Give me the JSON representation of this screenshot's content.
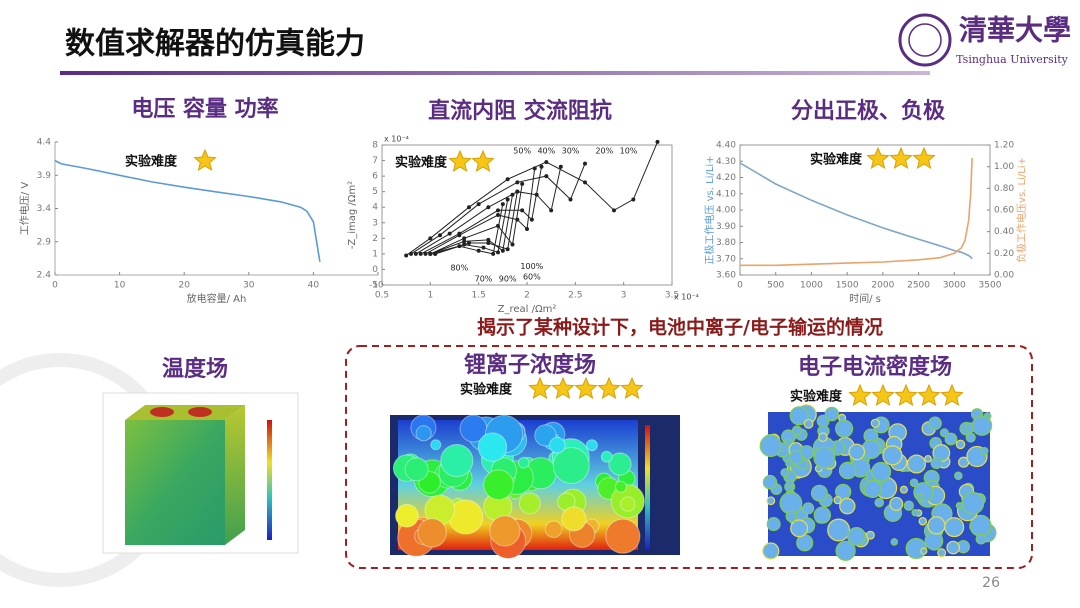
{
  "header": {
    "title": "数值求解器的仿真能力",
    "logo_cn": "清華大學",
    "logo_en": "Tsinghua University"
  },
  "sections": [
    {
      "title": "电压 容量 功率",
      "difficulty_label": "实验难度",
      "stars": 1
    },
    {
      "title": "直流内阻 交流阻抗",
      "difficulty_label": "实验难度",
      "stars": 2
    },
    {
      "title": "分出正极、负极",
      "difficulty_label": "实验难度",
      "stars": 3
    },
    {
      "title": "温度场"
    },
    {
      "title": "锂离子浓度场",
      "difficulty_label": "实验难度",
      "stars": 5
    },
    {
      "title": "电子电流密度场",
      "difficulty_label": "实验难度",
      "stars": 5
    }
  ],
  "banner": "揭示了某种设计下，电池中离子/电子输运的情况",
  "page_number": "26",
  "chart_data": [
    {
      "type": "line",
      "xlabel": "放电容量/ Ah",
      "ylabel": "工作电压/ V",
      "x": [
        0,
        1,
        5,
        10,
        15,
        20,
        25,
        30,
        35,
        38,
        39,
        40,
        40.5,
        41
      ],
      "series": [
        {
          "color": "#5b9bd5",
          "values": [
            4.12,
            4.07,
            4.0,
            3.9,
            3.8,
            3.72,
            3.65,
            3.58,
            3.5,
            3.42,
            3.36,
            3.2,
            2.9,
            2.6
          ]
        }
      ],
      "xlim": [
        0,
        50
      ],
      "xticks": [
        0,
        10,
        20,
        30,
        40,
        50
      ],
      "ylim": [
        2.4,
        4.4
      ],
      "yticks": [
        2.4,
        2.9,
        3.4,
        3.9,
        4.4
      ]
    },
    {
      "type": "line",
      "markers": true,
      "xlabel": "Z_real /Ωm²",
      "ylabel": "-Z_imag /Ωm²",
      "x_exponent": "x 10⁻⁴",
      "y_exponent": "x 10⁻⁴",
      "series": [
        {
          "name": "10%",
          "color": "#222",
          "x": [
            0.75,
            1.0,
            1.4,
            1.8,
            2.2,
            2.6,
            2.9,
            3.1,
            3.35
          ],
          "values": [
            0.9,
            2.0,
            4.0,
            5.8,
            6.9,
            5.6,
            3.8,
            4.5,
            8.2
          ]
        },
        {
          "name": "20%",
          "color": "#222",
          "x": [
            0.8,
            1.1,
            1.5,
            1.9,
            2.2,
            2.45,
            2.6
          ],
          "values": [
            1.0,
            2.2,
            4.2,
            5.6,
            6.0,
            4.5,
            6.8
          ]
        },
        {
          "name": "30%",
          "color": "#222",
          "x": [
            0.85,
            1.2,
            1.6,
            1.9,
            2.1,
            2.25,
            2.35
          ],
          "values": [
            1.0,
            2.3,
            4.0,
            5.0,
            4.8,
            3.8,
            6.6
          ]
        },
        {
          "name": "40%",
          "color": "#222",
          "x": [
            0.9,
            1.3,
            1.7,
            1.95,
            2.05,
            2.15
          ],
          "values": [
            1.0,
            2.3,
            3.8,
            3.8,
            3.2,
            6.6
          ]
        },
        {
          "name": "50%",
          "color": "#222",
          "x": [
            0.95,
            1.3,
            1.7,
            1.9,
            2.0,
            2.08
          ],
          "values": [
            1.0,
            2.2,
            3.5,
            3.2,
            2.6,
            6.5
          ]
        },
        {
          "name": "60%",
          "color": "#222",
          "x": [
            1.0,
            1.35,
            1.7,
            1.85,
            1.95
          ],
          "values": [
            1.0,
            2.0,
            2.8,
            1.6,
            5.5
          ]
        },
        {
          "name": "70%",
          "color": "#222",
          "x": [
            1.0,
            1.35,
            1.6,
            1.75,
            1.85
          ],
          "values": [
            1.0,
            1.8,
            1.9,
            1.2,
            4.8
          ]
        },
        {
          "name": "80%",
          "color": "#222",
          "x": [
            1.0,
            1.3,
            1.5,
            1.65,
            1.75
          ],
          "values": [
            1.0,
            1.5,
            1.2,
            1.0,
            4.2
          ]
        },
        {
          "name": "90%",
          "color": "#222",
          "x": [
            1.05,
            1.35,
            1.55,
            1.7,
            1.8
          ],
          "values": [
            1.0,
            1.6,
            1.4,
            1.1,
            4.5
          ]
        },
        {
          "name": "100%",
          "color": "#222",
          "x": [
            1.05,
            1.4,
            1.6,
            1.8,
            1.9
          ],
          "values": [
            1.0,
            1.7,
            1.7,
            1.3,
            5.0
          ]
        }
      ],
      "xlim": [
        0.5,
        3.5
      ],
      "xticks": [
        0.5,
        1,
        1.5,
        2,
        2.5,
        3,
        3.5
      ],
      "ylim": [
        -1,
        8
      ],
      "yticks": [
        -1,
        0,
        1,
        2,
        3,
        4,
        5,
        6,
        7,
        8
      ]
    },
    {
      "type": "line",
      "xlabel": "时间/ s",
      "ylabel": "正极工作电压 vs. Li/Li+",
      "y2label": "负极工作电压vs. Li/Li+",
      "x": [
        0,
        500,
        1000,
        1500,
        2000,
        2500,
        2800,
        3000,
        3100,
        3150,
        3200,
        3230,
        3250
      ],
      "series": [
        {
          "color": "#7fa6c8",
          "values": [
            4.29,
            4.16,
            4.06,
            3.97,
            3.89,
            3.82,
            3.78,
            3.75,
            3.74,
            3.73,
            3.72,
            3.71,
            3.7
          ]
        },
        {
          "color": "#e8a46a",
          "axis": "y2",
          "values": [
            0.09,
            0.09,
            0.1,
            0.11,
            0.12,
            0.14,
            0.16,
            0.2,
            0.25,
            0.32,
            0.5,
            0.75,
            1.08
          ]
        }
      ],
      "xlim": [
        0,
        3500
      ],
      "xticks": [
        0,
        500,
        1000,
        1500,
        2000,
        2500,
        3000,
        3500
      ],
      "ylim": [
        3.6,
        4.4
      ],
      "yticks": [
        {
          "value": 3.6,
          "label": "3.60"
        },
        {
          "value": 3.7,
          "label": "3.70"
        },
        {
          "value": 3.8,
          "label": "3.80"
        },
        {
          "value": 3.9,
          "label": "3.90"
        },
        {
          "value": 4.0,
          "label": "4.00"
        },
        {
          "value": 4.1,
          "label": "4.10"
        },
        {
          "value": 4.2,
          "label": "4.20"
        },
        {
          "value": 4.3,
          "label": "4.30"
        },
        {
          "value": 4.4,
          "label": "4.40"
        }
      ],
      "y2lim": [
        0,
        1.2
      ],
      "y2ticks": [
        {
          "value": 0,
          "label": "0.00"
        },
        {
          "value": 0.2,
          "label": "0.20"
        },
        {
          "value": 0.4,
          "label": "0.40"
        },
        {
          "value": 0.6,
          "label": "0.60"
        },
        {
          "value": 0.8,
          "label": "0.80"
        },
        {
          "value": 1.0,
          "label": "1.00"
        },
        {
          "value": 1.2,
          "label": "1.20"
        }
      ]
    }
  ]
}
